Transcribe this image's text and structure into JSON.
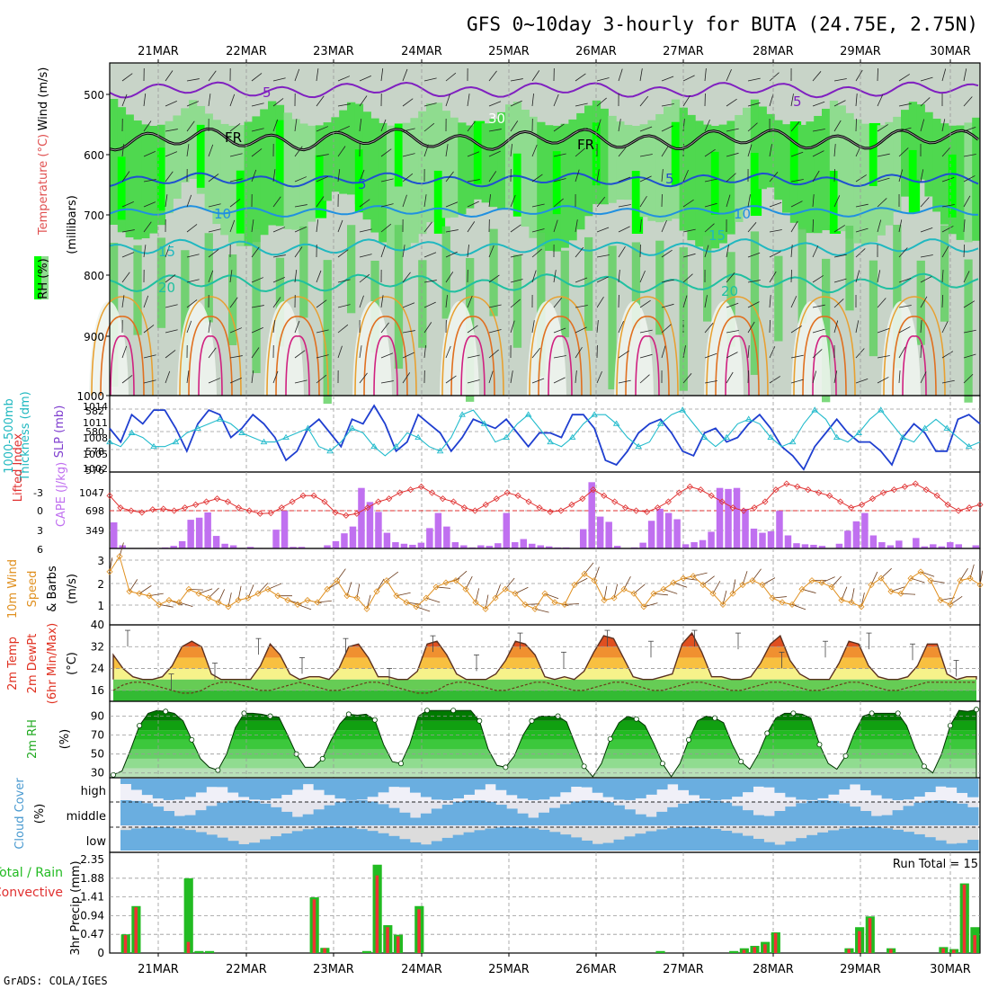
{
  "title": "GFS 0~10day 3-hourly for BUTA (24.75E, 2.75N)",
  "footer": "GrADS: COLA/IGES",
  "dates": [
    "21MAR",
    "22MAR",
    "23MAR",
    "24MAR",
    "25MAR",
    "26MAR",
    "27MAR",
    "28MAR",
    "29MAR",
    "30MAR"
  ],
  "colors": {
    "rh_green": "#00ff00",
    "grey_fill": "#b8c8b8",
    "slp_line": "#1f3fd0",
    "thickness_line": "#22bbcc",
    "lifted_index_line": "#e03030",
    "cape_bar": "#c070f0",
    "wind_line": "#e09020",
    "temp_warm": "#e03020",
    "rh_fill": "#22cc22",
    "cloud_blue": "#6aaee0",
    "precip_total": "#22bb22",
    "precip_conv": "#ee3333"
  },
  "panels": {
    "upper": {
      "labels": [
        "RH (%)",
        "Temperature (°C)",
        "Wind (m/s)",
        "(millibars)"
      ],
      "yticks": [
        "500",
        "600",
        "700",
        "800",
        "900",
        "1000"
      ],
      "contour_labels": [
        "5",
        "FR",
        "5",
        "10",
        "15",
        "20",
        "5",
        "FR",
        "5",
        "10",
        "15",
        "20",
        "30"
      ]
    },
    "thickness": {
      "labels": [
        "1000-500mb",
        "Thickness (dm)",
        "SLP (mb)"
      ],
      "left_ticks": [
        "582",
        "580",
        "578",
        "576"
      ],
      "right_ticks": [
        "1014",
        "1011",
        "1008",
        "1005",
        "1002"
      ]
    },
    "cape": {
      "labels": [
        "Lifted Index",
        "CAPE (J/kg)"
      ],
      "left_ticks": [
        "-3",
        "0",
        "3",
        "6"
      ],
      "right_ticks": [
        "1047",
        "698",
        "349"
      ]
    },
    "wind10m": {
      "labels": [
        "10m Wind",
        "Speed",
        "& Barbs",
        "(m/s)"
      ],
      "yticks": [
        "3",
        "2",
        "1"
      ]
    },
    "temp2m": {
      "labels": [
        "2m Temp",
        "2m DewPt",
        "(6hr Min/Max)",
        "(°C)"
      ],
      "yticks": [
        "40",
        "32",
        "24",
        "16"
      ]
    },
    "rh2m": {
      "labels": [
        "2m RH",
        "(%)"
      ],
      "yticks": [
        "90",
        "70",
        "50",
        "30"
      ]
    },
    "cloud": {
      "labels": [
        "Cloud Cover",
        "(%)"
      ],
      "levels": [
        "high",
        "middle",
        "low"
      ]
    },
    "precip": {
      "labels": [
        "Total / Rain",
        "Convective",
        "3hr Precip (mm)"
      ],
      "yticks": [
        "2.35",
        "1.88",
        "1.41",
        "0.94",
        "0.47",
        "0"
      ],
      "run_total": "Run Total = 15"
    }
  },
  "chart_data": [
    {
      "type": "line",
      "title": "1000-500mb Thickness / SLP",
      "series": [
        {
          "name": "SLP (mb)",
          "values": [
            1009,
            1006,
            1012,
            1010,
            1013,
            1013,
            1009,
            1004,
            1010,
            1013,
            1012,
            1007,
            1009,
            1012,
            1010,
            1007,
            1002,
            1004,
            1009,
            1011,
            1008,
            1005,
            1011,
            1010,
            1014,
            1010,
            1004,
            1006,
            1012,
            1010,
            1008,
            1004,
            1007,
            1011,
            1010,
            1009,
            1011,
            1008,
            1005,
            1008,
            1008,
            1007,
            1012,
            1012,
            1009,
            1002,
            1001,
            1004,
            1008,
            1010,
            1011,
            1008,
            1004,
            1003,
            1008,
            1009,
            1006,
            1007,
            1010,
            1012,
            1009,
            1005,
            1003,
            1000,
            1005,
            1008,
            1011,
            1008,
            1006,
            1006,
            1004,
            1001,
            1007,
            1010,
            1008,
            1004,
            1004,
            1011,
            1012,
            1010
          ]
        },
        {
          "name": "1000-500mb Thickness (dm)",
          "values": [
            578.5,
            578.0,
            579.5,
            579.0,
            578.0,
            578.0,
            578.5,
            579.5,
            580.0,
            580.5,
            581.0,
            580.5,
            579.5,
            579.0,
            578.5,
            578.5,
            579.0,
            579.5,
            580.0,
            578.0,
            577.5,
            578.5,
            580.0,
            579.5,
            578.0,
            577.0,
            578.0,
            579.5,
            579.0,
            578.0,
            577.5,
            579.0,
            581.5,
            582.0,
            580.5,
            578.5,
            579.0,
            580.5,
            581.5,
            580.0,
            578.5,
            578.0,
            579.0,
            580.5,
            581.5,
            581.5,
            580.5,
            579.0,
            578.0,
            578.5,
            580.5,
            581.5,
            582.0,
            580.5,
            579.0,
            578.0,
            579.0,
            580.5,
            581.0,
            580.5,
            579.0,
            578.0,
            578.5,
            580.5,
            582.0,
            581.0,
            579.0,
            578.5,
            579.5,
            581.0,
            582.0,
            580.5,
            579.0,
            578.5,
            580.0,
            581.0,
            580.0,
            579.0,
            578.0,
            578.5
          ]
        }
      ],
      "ylim_left": [
        576,
        583
      ],
      "ylim_right": [
        1001,
        1015
      ]
    },
    {
      "type": "bar",
      "title": "Lifted Index / CAPE",
      "series": [
        {
          "name": "CAPE (J/kg)",
          "values": [
            500,
            60,
            10,
            0,
            10,
            10,
            20,
            50,
            140,
            550,
            590,
            690,
            240,
            90,
            60,
            10,
            30,
            10,
            0,
            360,
            720,
            30,
            30,
            0,
            0,
            60,
            140,
            290,
            420,
            1160,
            890,
            700,
            300,
            120,
            90,
            70,
            110,
            390,
            680,
            420,
            120,
            60,
            20,
            60,
            50,
            100,
            680,
            120,
            180,
            90,
            60,
            40,
            20,
            20,
            0,
            370,
            1270,
            610,
            510,
            50,
            0,
            20,
            110,
            530,
            760,
            680,
            560,
            80,
            120,
            160,
            320,
            1160,
            1140,
            1160,
            760,
            380,
            300,
            330,
            720,
            250,
            100,
            80,
            70,
            50,
            0,
            90,
            340,
            520,
            680,
            250,
            120,
            60,
            150,
            0,
            200,
            40,
            80,
            40,
            120,
            80,
            0,
            60
          ]
        },
        {
          "name": "Lifted Index",
          "values": [
            -2.5,
            -0.5,
            0,
            0.3,
            -0.2,
            -0.3,
            0,
            -0.5,
            -1.0,
            -1.5,
            -2.0,
            -1.5,
            -0.5,
            0,
            0.5,
            0.4,
            -0.5,
            -1.5,
            -2.5,
            -2.5,
            -1.5,
            0.3,
            0.8,
            0.5,
            -0.5,
            -1.5,
            -2.0,
            -3.0,
            -3.5,
            -4.0,
            -3.0,
            -2.0,
            -1.5,
            -0.5,
            0,
            -1.0,
            -2.0,
            -3.0,
            -2.5,
            -1.5,
            -0.5,
            0.2,
            0,
            -1.0,
            -2.0,
            -3.5,
            -2.5,
            -1.5,
            -0.5,
            0,
            0.2,
            -0.5,
            -1.5,
            -3.0,
            -4.0,
            -3.5,
            -2.5,
            -1.5,
            -0.5,
            0,
            -0.5,
            -1.5,
            -3.5,
            -4.5,
            -4.0,
            -3.5,
            -3.0,
            -2.5,
            -1.5,
            -0.5,
            -1.0,
            -2.0,
            -3.0,
            -3.5,
            -4.0,
            -4.5,
            -3.5,
            -2.5,
            -1.0,
            0,
            -0.5,
            -1.0
          ]
        }
      ],
      "ylim_left": [
        -5,
        6
      ],
      "ylim_right": [
        0,
        1396
      ]
    },
    {
      "type": "line",
      "title": "10m Wind Speed",
      "series": [
        {
          "name": "10m Wind Speed (m/s)",
          "values": [
            2.4,
            3.1,
            1.5,
            1.4,
            1.3,
            0.9,
            1.1,
            1.0,
            1.6,
            1.4,
            1.2,
            1.0,
            0.8,
            1.1,
            1.2,
            1.4,
            1.6,
            1.3,
            1.1,
            0.9,
            1.1,
            1.0,
            1.6,
            2.0,
            1.3,
            1.2,
            0.7,
            1.5,
            2.0,
            1.3,
            1.0,
            0.8,
            1.2,
            1.7,
            1.9,
            2.0,
            1.6,
            1.0,
            0.7,
            1.2,
            1.6,
            1.4,
            0.9,
            0.7,
            1.4,
            1.0,
            0.9,
            1.8,
            2.3,
            2.0,
            1.1,
            1.2,
            1.6,
            1.4,
            0.8,
            1.4,
            1.6,
            1.9,
            2.1,
            2.2,
            1.8,
            1.4,
            0.9,
            1.4,
            1.8,
            2.0,
            1.8,
            1.2,
            1.0,
            0.9,
            1.6,
            2.0,
            1.9,
            1.7,
            1.1,
            1.0,
            0.8,
            1.8,
            2.1,
            1.5,
            1.4,
            2.1,
            2.4,
            2.0,
            1.1,
            0.9,
            2.0,
            2.1,
            1.8
          ]
        }
      ],
      "ylim": [
        0.3,
        3.3
      ]
    },
    {
      "type": "area",
      "title": "2m Temp / DewPt",
      "series": [
        {
          "name": "2m Temp (°C)",
          "values": [
            29,
            24,
            21,
            20,
            20,
            21,
            25,
            32,
            34,
            32,
            22,
            20,
            20,
            20,
            20,
            25,
            33,
            29,
            22,
            20,
            21,
            21,
            20,
            24,
            32,
            33,
            28,
            21,
            21,
            20,
            20,
            23,
            33,
            34,
            29,
            22,
            20,
            20,
            20,
            22,
            27,
            34,
            33,
            29,
            21,
            20,
            21,
            20,
            23,
            30,
            36,
            35,
            28,
            21,
            20,
            20,
            21,
            22,
            33,
            37,
            30,
            21,
            21,
            20,
            20,
            21,
            26,
            33,
            36,
            27,
            22,
            20,
            20,
            20,
            26,
            34,
            33,
            25,
            21,
            20,
            20,
            21,
            25,
            33,
            33,
            22,
            20,
            21,
            21
          ]
        },
        {
          "name": "2m DewPt (°C)",
          "values": [
            16,
            18,
            19,
            19,
            18,
            17,
            16,
            15,
            15,
            16,
            18,
            19,
            19,
            18,
            17,
            16,
            16,
            17,
            18,
            19,
            18,
            17,
            16,
            16,
            17,
            18,
            19,
            19,
            18,
            17,
            16,
            15,
            15,
            16,
            18,
            19,
            19,
            18,
            17,
            16,
            16,
            17,
            18,
            19,
            19,
            18,
            17,
            16,
            16,
            17,
            18,
            19,
            19,
            18,
            17,
            16,
            16,
            17,
            18,
            19,
            19,
            18,
            17,
            16,
            16,
            17,
            18,
            19,
            19,
            18,
            17,
            16,
            16,
            17,
            18,
            19,
            19,
            18,
            17,
            16,
            16,
            17,
            18,
            19,
            19,
            19,
            19,
            19,
            19
          ]
        },
        {
          "name": "6hr Max (°C)",
          "values": [
            38,
            22,
            26,
            35,
            28,
            35,
            24,
            36,
            29,
            37,
            30,
            38,
            34,
            38,
            37,
            30,
            34,
            37,
            33,
            27
          ]
        }
      ],
      "ylim": [
        12,
        40
      ]
    },
    {
      "type": "area",
      "title": "2m RH",
      "series": [
        {
          "name": "2m RH (%)",
          "values": [
            28,
            32,
            55,
            80,
            93,
            96,
            95,
            93,
            85,
            65,
            45,
            36,
            33,
            50,
            78,
            93,
            93,
            92,
            90,
            89,
            70,
            50,
            36,
            36,
            45,
            65,
            82,
            92,
            91,
            92,
            86,
            60,
            42,
            40,
            60,
            90,
            96,
            96,
            96,
            96,
            96,
            96,
            85,
            55,
            38,
            36,
            48,
            70,
            85,
            90,
            90,
            90,
            84,
            60,
            37,
            26,
            40,
            66,
            83,
            90,
            87,
            80,
            61,
            40,
            26,
            40,
            65,
            85,
            90,
            88,
            83,
            60,
            42,
            34,
            50,
            72,
            88,
            93,
            93,
            92,
            88,
            60,
            40,
            34,
            48,
            72,
            90,
            93,
            93,
            93,
            93,
            80,
            55,
            37,
            30,
            50,
            80,
            96,
            95,
            97
          ]
        }
      ],
      "ylim": [
        25,
        100
      ]
    },
    {
      "type": "bar",
      "title": "3hr Precip (mm)",
      "series": [
        {
          "name": "Total / Rain",
          "values": [
            0,
            0.47,
            1.18,
            0,
            0,
            0,
            0,
            1.88,
            0.05,
            0.05,
            0,
            0,
            0,
            0,
            0,
            0,
            0,
            0,
            0,
            1.4,
            0.13,
            0,
            0,
            0,
            0.05,
            2.22,
            0.7,
            0.46,
            0,
            1.18,
            0,
            0,
            0,
            0,
            0,
            0,
            0,
            0,
            0,
            0,
            0,
            0,
            0,
            0,
            0,
            0,
            0,
            0,
            0,
            0,
            0,
            0,
            0.05,
            0,
            0,
            0,
            0,
            0,
            0,
            0.05,
            0.12,
            0.18,
            0.28,
            0.52,
            0,
            0,
            0,
            0,
            0,
            0,
            0.12,
            0.65,
            0.92,
            0,
            0.12,
            0,
            0,
            0,
            0,
            0.15,
            0.1,
            1.75,
            0.65
          ]
        },
        {
          "name": "Convective",
          "values": [
            0,
            0.45,
            1.15,
            0,
            0,
            0,
            0,
            0.28,
            0,
            0,
            0,
            0,
            0,
            0,
            0,
            0,
            0,
            0,
            0,
            1.35,
            0.12,
            0,
            0,
            0,
            0,
            1.95,
            0.65,
            0.42,
            0,
            1.1,
            0,
            0,
            0,
            0,
            0,
            0,
            0,
            0,
            0,
            0,
            0,
            0,
            0,
            0,
            0,
            0,
            0,
            0,
            0,
            0,
            0,
            0,
            0,
            0,
            0,
            0,
            0,
            0,
            0,
            0,
            0.08,
            0.15,
            0.22,
            0.5,
            0,
            0,
            0,
            0,
            0,
            0,
            0.1,
            0.55,
            0.88,
            0,
            0.1,
            0,
            0,
            0,
            0,
            0.12,
            0.08,
            1.72,
            0.45
          ]
        }
      ],
      "ylim": [
        0,
        2.35
      ]
    }
  ]
}
